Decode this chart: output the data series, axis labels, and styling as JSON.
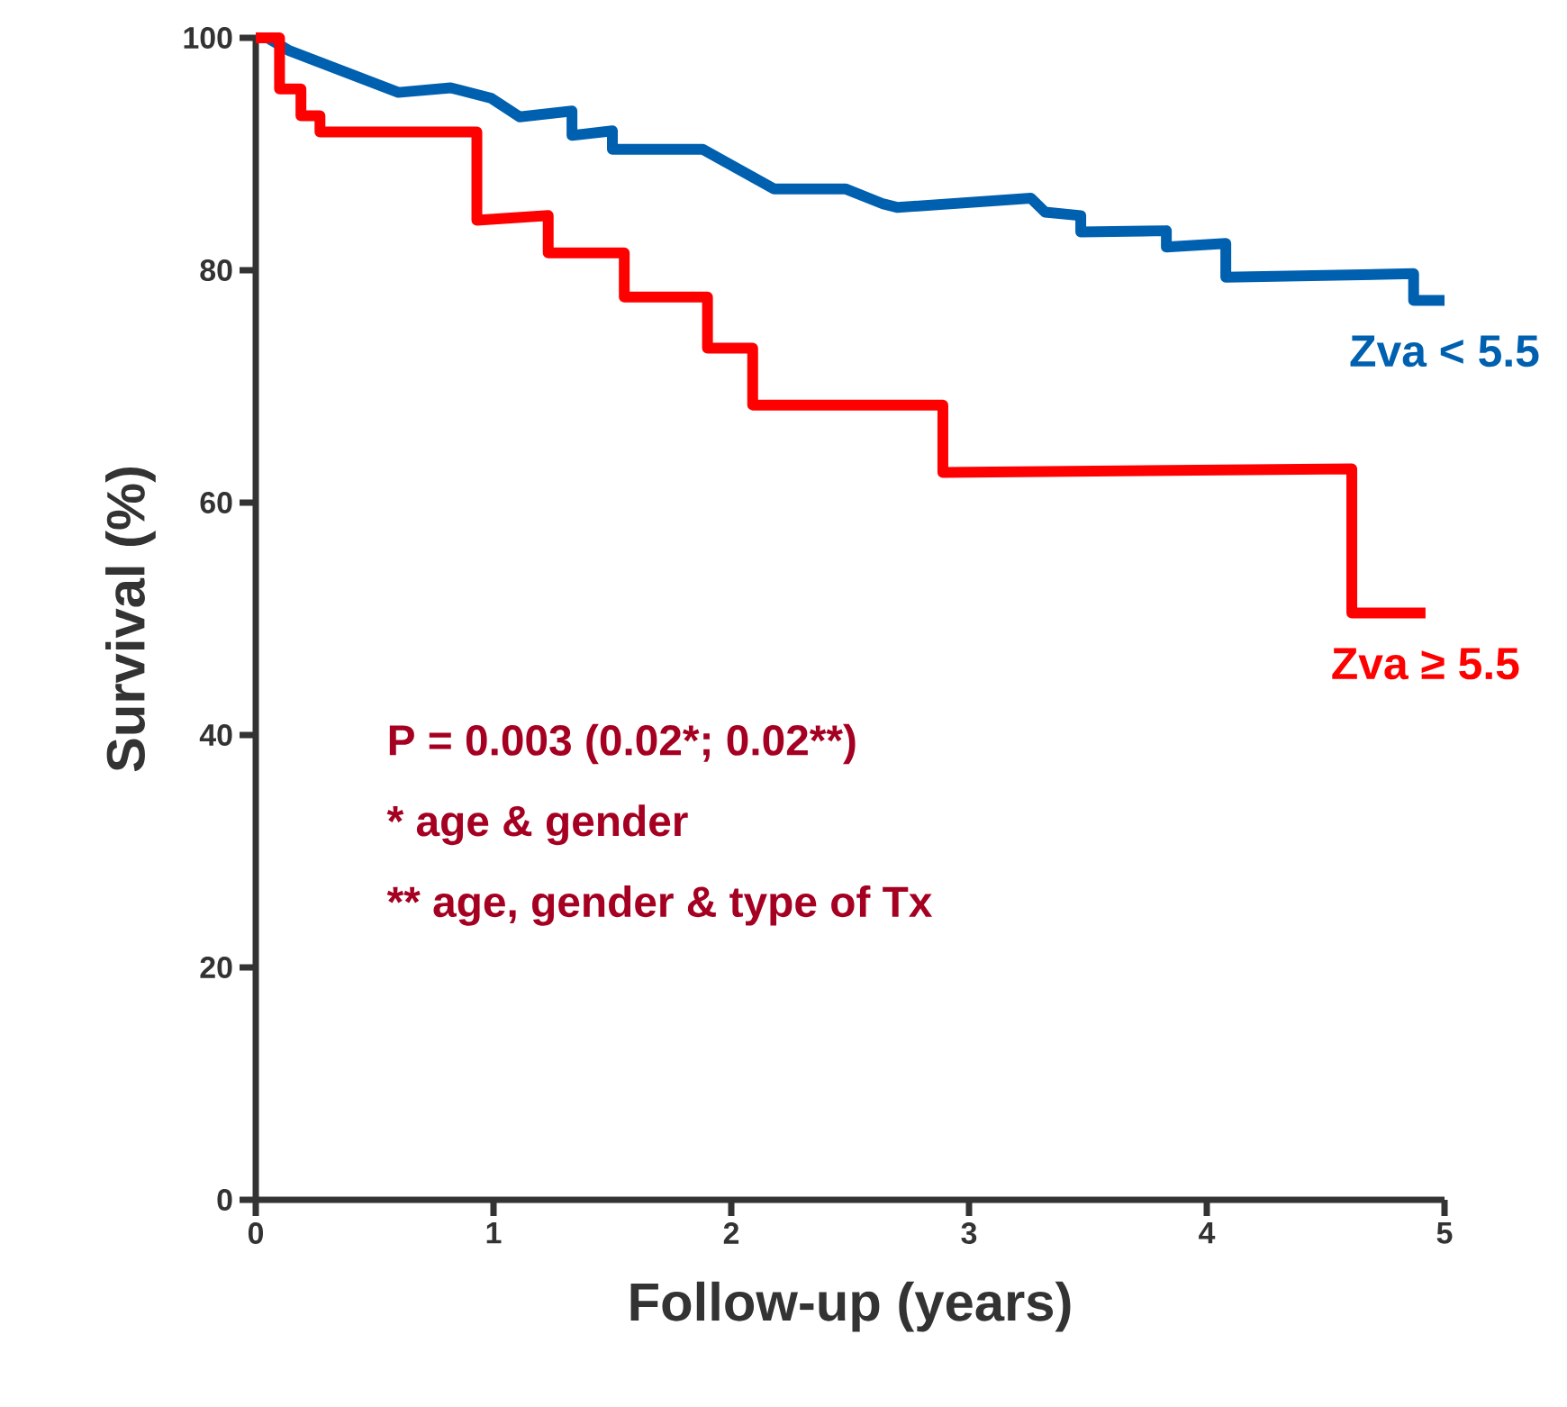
{
  "chart_data": {
    "type": "line",
    "xlabel": "Follow-up (years)",
    "ylabel": "Survival (%)",
    "xlim": [
      0,
      5
    ],
    "ylim": [
      0,
      100
    ],
    "xticks": [
      0,
      1,
      2,
      3,
      4,
      5
    ],
    "yticks": [
      0,
      20,
      40,
      60,
      80,
      100
    ],
    "grid": false,
    "marker": "none",
    "line_style": "solid",
    "series": [
      {
        "name": "Zva < 5.5",
        "color": "#0060b0",
        "x": [
          0.05,
          0.14,
          0.6,
          0.82,
          0.99,
          1.11,
          1.33,
          1.33,
          1.5,
          1.5,
          1.88,
          2.18,
          2.48,
          2.64,
          2.7,
          3.26,
          3.32,
          3.47,
          3.47,
          3.83,
          3.83,
          4.08,
          4.08,
          4.87,
          4.87,
          5.0
        ],
        "values": [
          100,
          98.9,
          95.3,
          95.7,
          94.8,
          93.2,
          93.7,
          91.6,
          92,
          90.4,
          90.4,
          87,
          87,
          85.7,
          85.4,
          86.2,
          85.0,
          84.7,
          83.3,
          83.4,
          82.0,
          82.3,
          79.4,
          79.7,
          77.4,
          77.4
        ]
      },
      {
        "name": "Zva ≥ 5.5",
        "color": "#ff0000",
        "x": [
          0,
          0.1,
          0.1,
          0.19,
          0.19,
          0.27,
          0.27,
          0.93,
          0.93,
          1.23,
          1.23,
          1.55,
          1.55,
          1.9,
          1.9,
          2.09,
          2.09,
          2.89,
          2.89,
          4.61,
          4.61,
          4.92
        ],
        "values": [
          100,
          100,
          95.6,
          95.6,
          93.3,
          93.3,
          91.9,
          91.9,
          84.3,
          84.7,
          81.5,
          81.5,
          77.7,
          77.7,
          73.3,
          73.3,
          68.4,
          68.4,
          62.6,
          62.9,
          50.5,
          50.5
        ]
      }
    ],
    "annotations": [
      "P = 0.003 (0.02*; 0.02**)",
      "* age & gender",
      "** age, gender & type of Tx"
    ]
  }
}
